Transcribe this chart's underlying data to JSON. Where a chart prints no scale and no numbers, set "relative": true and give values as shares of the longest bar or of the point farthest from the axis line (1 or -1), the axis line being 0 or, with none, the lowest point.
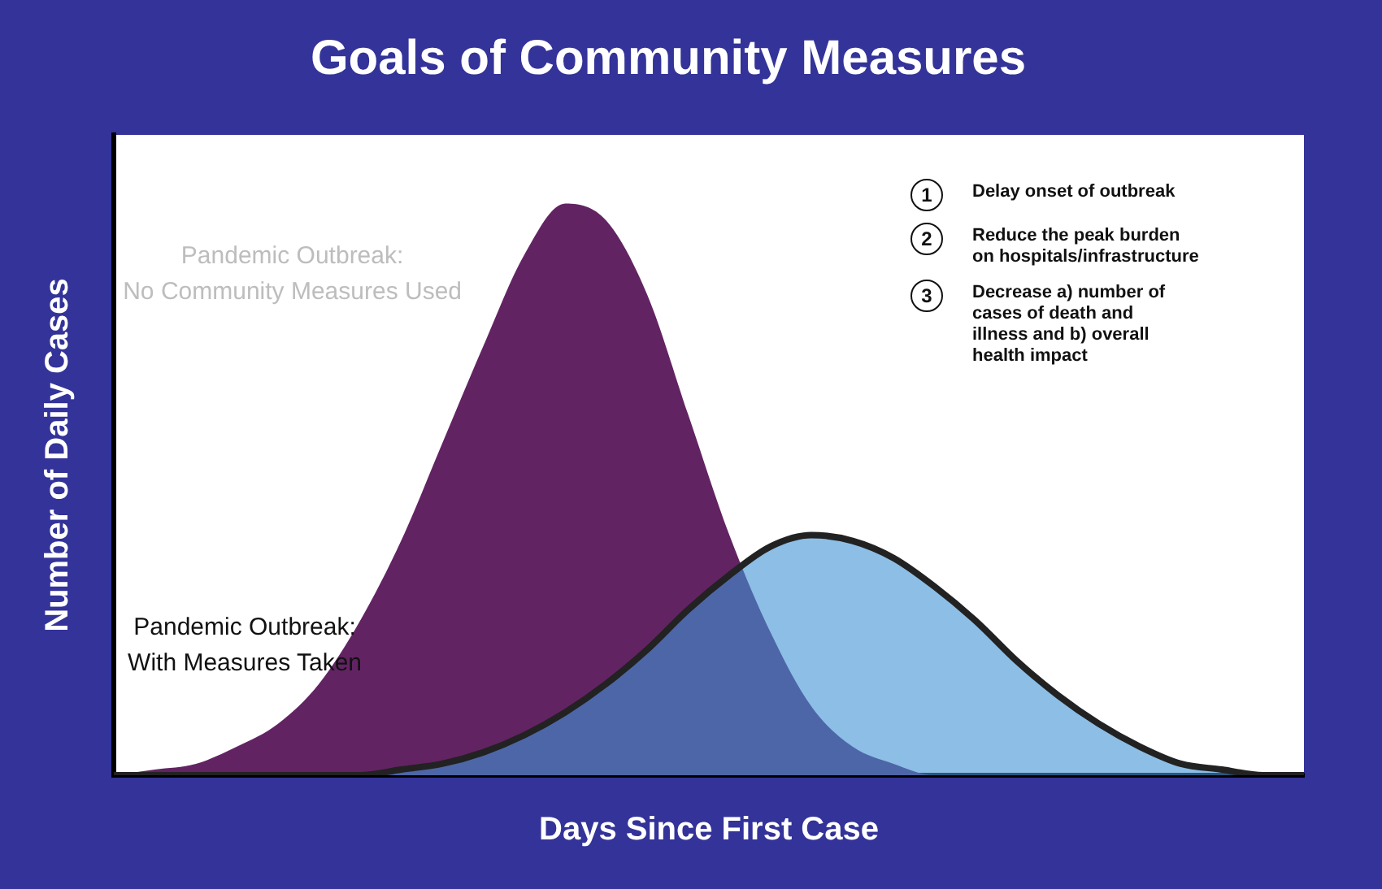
{
  "chart_data": {
    "type": "area",
    "title": "Goals of Community Measures",
    "xlabel": "Days Since First Case",
    "ylabel": "Number of Daily Cases",
    "relative": true,
    "legend": false,
    "grid": false,
    "categories": [
      null,
      null,
      null,
      null,
      null,
      null,
      null,
      null,
      null,
      null,
      null,
      null,
      null,
      null,
      null,
      null,
      null,
      null,
      null,
      null,
      null,
      null,
      null,
      null,
      null,
      null,
      null,
      null,
      null,
      null
    ],
    "series": [
      {
        "name": "Pandemic Outbreak:\nNo Community Measures Used",
        "color": "#622363",
        "values": [
          0,
          0.01,
          0.02,
          0.05,
          0.09,
          0.16,
          0.27,
          0.41,
          0.58,
          0.75,
          0.91,
          1,
          0.97,
          0.84,
          0.63,
          0.42,
          0.25,
          0.12,
          0.05,
          0.02,
          0,
          0,
          0,
          0,
          0,
          0,
          0,
          0,
          0,
          0
        ]
      },
      {
        "name": "Pandemic Outbreak:\nWith Measures Taken",
        "color": "#3f93d6",
        "values": [
          0,
          0,
          0,
          0,
          0,
          0,
          0,
          0.01,
          0.02,
          0.04,
          0.07,
          0.11,
          0.16,
          0.22,
          0.29,
          0.35,
          0.4,
          0.42,
          0.41,
          0.38,
          0.33,
          0.27,
          0.2,
          0.14,
          0.09,
          0.05,
          0.02,
          0.01,
          0,
          0
        ]
      }
    ],
    "annotations": [
      "1",
      "Delay onset of outbreak",
      "2",
      "Reduce the peak burden\non hospitals/infrastructure",
      "3",
      "Decrease a) number of\ncases of death and\nillness and b) overall\nhealth impact"
    ]
  }
}
